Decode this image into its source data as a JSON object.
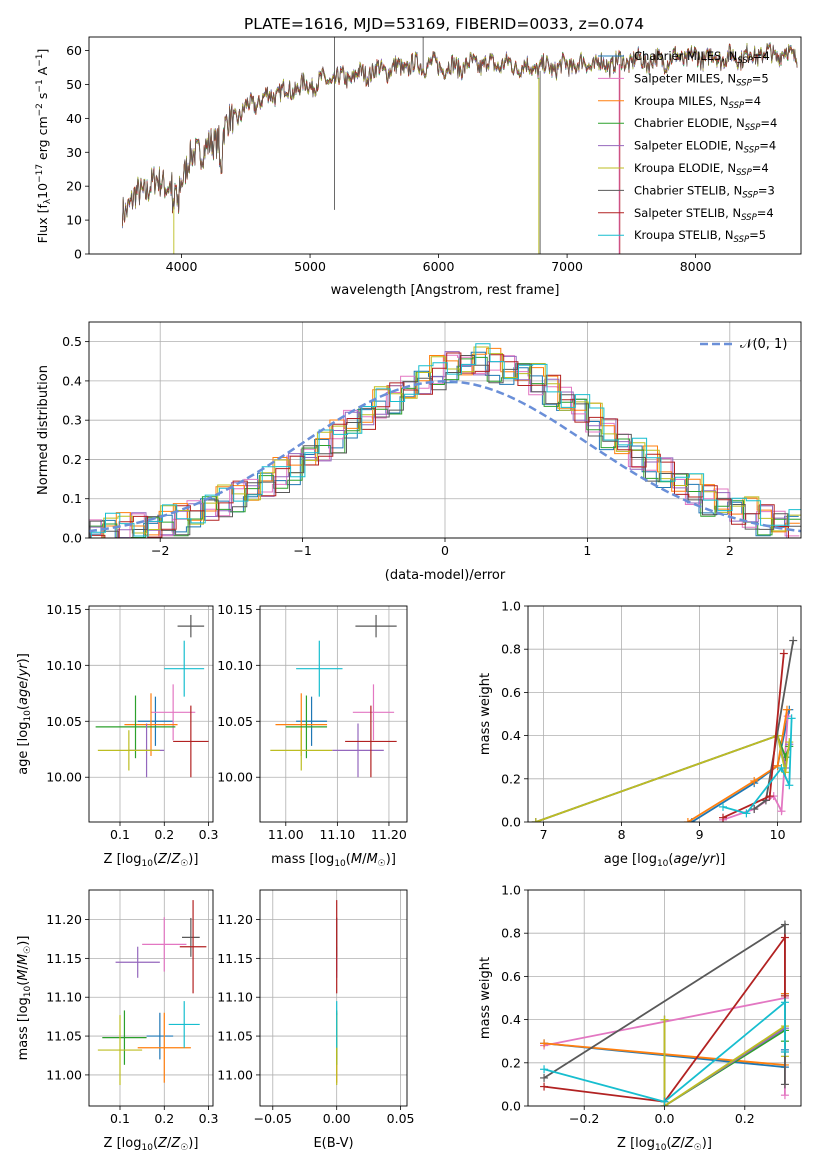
{
  "figure_title": "PLATE=1616, MJD=53169, FIBERID=0033, z=0.074",
  "colors": {
    "Chabrier MILES": "#1f77b4",
    "Salpeter MILES": "#e377c2",
    "Kroupa MILES": "#ff7f0e",
    "Chabrier ELODIE": "#2ca02c",
    "Salpeter ELODIE": "#9467bd",
    "Kroupa ELODIE": "#bcbd22",
    "Chabrier STELIB": "#595959",
    "Salpeter STELIB": "#b22222",
    "Kroupa STELIB": "#17becf",
    "gaussian": "#6a8fd8"
  },
  "chart_data": [
    {
      "id": "spectrum",
      "type": "line",
      "title": "PLATE=1616, MJD=53169, FIBERID=0033, z=0.074",
      "xlabel": "wavelength [Angstrom, rest frame]",
      "ylabel": "Flux [f_λ10^-17 erg cm^-2 s^-1 A^-1]",
      "xlim": [
        3280,
        8820
      ],
      "ylim": [
        0,
        64
      ],
      "xticks": [
        4000,
        5000,
        6000,
        7000,
        8000
      ],
      "yticks": [
        0,
        10,
        20,
        30,
        40,
        50,
        60
      ],
      "grid": false,
      "legend_position": "top-right",
      "series": [
        {
          "name": "Chabrier MILES, N_SSP=4"
        },
        {
          "name": "Salpeter MILES, N_SSP=5"
        },
        {
          "name": "Kroupa MILES, N_SSP=4"
        },
        {
          "name": "Chabrier ELODIE, N_SSP=4"
        },
        {
          "name": "Salpeter ELODIE, N_SSP=4"
        },
        {
          "name": "Kroupa ELODIE, N_SSP=4"
        },
        {
          "name": "Chabrier STELIB, N_SSP=3"
        },
        {
          "name": "Salpeter STELIB, N_SSP=4"
        },
        {
          "name": "Kroupa STELIB, N_SSP=5"
        }
      ],
      "continuum": {
        "x": [
          3550,
          3650,
          3750,
          3850,
          3950,
          4050,
          4150,
          4250,
          4350,
          4500,
          4700,
          4900,
          5100,
          5300,
          5500,
          5700,
          5900,
          6100,
          6300,
          6500,
          6700,
          6900,
          7100,
          7300,
          7500,
          7700,
          7900,
          8100,
          8300,
          8500,
          8700,
          8800
        ],
        "y": [
          13,
          17,
          20,
          22,
          18,
          27,
          31,
          32,
          38,
          43,
          47,
          49,
          51,
          52,
          54,
          55,
          56,
          55,
          56,
          56,
          55,
          55,
          56,
          56,
          57,
          57,
          58,
          58,
          58,
          59,
          59,
          59
        ]
      }
    },
    {
      "id": "residuals",
      "type": "bar",
      "xlabel": "(data-model)/error",
      "ylabel": "Normed distribution",
      "xlim": [
        -2.5,
        2.5
      ],
      "ylim": [
        0,
        0.55
      ],
      "xticks": [
        -2,
        -1,
        0,
        1,
        2
      ],
      "yticks": [
        0.0,
        0.1,
        0.2,
        0.3,
        0.4,
        0.5
      ],
      "grid": true,
      "legend_position": "top-right",
      "legend": "𝒩(0, 1)",
      "bin_width": 0.1,
      "bin_start": -2.5,
      "base": [
        0.02,
        0.02,
        0.02,
        0.03,
        0.03,
        0.04,
        0.05,
        0.06,
        0.08,
        0.09,
        0.11,
        0.12,
        0.14,
        0.16,
        0.18,
        0.21,
        0.23,
        0.26,
        0.29,
        0.31,
        0.34,
        0.36,
        0.38,
        0.4,
        0.42,
        0.44,
        0.44,
        0.45,
        0.44,
        0.43,
        0.42,
        0.4,
        0.38,
        0.35,
        0.33,
        0.3,
        0.27,
        0.24,
        0.21,
        0.19,
        0.17,
        0.14,
        0.12,
        0.1,
        0.09,
        0.07,
        0.06,
        0.05,
        0.04,
        0.03
      ]
    },
    {
      "id": "age-vs-Z",
      "type": "scatter",
      "xlabel": "Z [log10(Z/Z☉)]",
      "ylabel": "age  [log10(age/yr)]",
      "xlim": [
        0.03,
        0.31
      ],
      "ylim": [
        9.96,
        10.153
      ],
      "xticks": [
        0.1,
        0.2,
        0.3
      ],
      "yticks": [
        10.0,
        10.05,
        10.1,
        10.15
      ],
      "grid": true,
      "points": [
        {
          "series": "Chabrier MILES",
          "x": 0.18,
          "y": 10.05,
          "xerr": 0.04,
          "yerr": 0.022
        },
        {
          "series": "Salpeter MILES",
          "x": 0.22,
          "y": 10.058,
          "xerr": 0.05,
          "yerr": 0.025
        },
        {
          "series": "Kroupa MILES",
          "x": 0.17,
          "y": 10.047,
          "xerr": 0.06,
          "yerr": 0.028
        },
        {
          "series": "Chabrier ELODIE",
          "x": 0.135,
          "y": 10.045,
          "xerr": 0.09,
          "yerr": 0.028
        },
        {
          "series": "Salpeter ELODIE",
          "x": 0.16,
          "y": 10.024,
          "xerr": 0.04,
          "yerr": 0.024
        },
        {
          "series": "Kroupa ELODIE",
          "x": 0.12,
          "y": 10.024,
          "xerr": 0.07,
          "yerr": 0.018
        },
        {
          "series": "Chabrier STELIB",
          "x": 0.26,
          "y": 10.135,
          "xerr": 0.03,
          "yerr": 0.01
        },
        {
          "series": "Salpeter STELIB",
          "x": 0.26,
          "y": 10.032,
          "xerr": 0.04,
          "yerr": 0.032
        },
        {
          "series": "Kroupa STELIB",
          "x": 0.245,
          "y": 10.097,
          "xerr": 0.045,
          "yerr": 0.025
        }
      ]
    },
    {
      "id": "age-vs-mass",
      "type": "scatter",
      "xlabel": "mass [log10(M/M☉)]",
      "ylabel": "",
      "xlim": [
        10.95,
        11.235
      ],
      "ylim": [
        9.96,
        10.153
      ],
      "xticks": [
        11.0,
        11.1,
        11.2
      ],
      "yticks": [
        10.0,
        10.05,
        10.1,
        10.15
      ],
      "grid": true,
      "points": [
        {
          "series": "Chabrier MILES",
          "x": 11.05,
          "y": 10.05,
          "xerr": 0.03,
          "yerr": 0.022
        },
        {
          "series": "Salpeter MILES",
          "x": 11.17,
          "y": 10.058,
          "xerr": 0.04,
          "yerr": 0.025
        },
        {
          "series": "Kroupa MILES",
          "x": 11.03,
          "y": 10.047,
          "xerr": 0.05,
          "yerr": 0.028
        },
        {
          "series": "Chabrier ELODIE",
          "x": 11.04,
          "y": 10.045,
          "xerr": 0.04,
          "yerr": 0.028
        },
        {
          "series": "Salpeter ELODIE",
          "x": 11.14,
          "y": 10.024,
          "xerr": 0.05,
          "yerr": 0.024
        },
        {
          "series": "Kroupa ELODIE",
          "x": 11.03,
          "y": 10.024,
          "xerr": 0.06,
          "yerr": 0.018
        },
        {
          "series": "Chabrier STELIB",
          "x": 11.175,
          "y": 10.135,
          "xerr": 0.04,
          "yerr": 0.01
        },
        {
          "series": "Salpeter STELIB",
          "x": 11.165,
          "y": 10.032,
          "xerr": 0.05,
          "yerr": 0.032
        },
        {
          "series": "Kroupa STELIB",
          "x": 11.065,
          "y": 10.097,
          "xerr": 0.045,
          "yerr": 0.025
        }
      ]
    },
    {
      "id": "weight-vs-age",
      "type": "line",
      "xlabel": "age  [log10(age/yr)]",
      "ylabel": "mass weight",
      "xlim": [
        6.8,
        10.3
      ],
      "ylim": [
        0,
        1.0
      ],
      "xticks": [
        7,
        8,
        9,
        10
      ],
      "yticks": [
        0.0,
        0.2,
        0.4,
        0.6,
        0.8,
        1.0
      ],
      "grid": true,
      "series": [
        {
          "key": "Chabrier MILES",
          "x": [
            8.9,
            9.7,
            10.0,
            10.15
          ],
          "y": [
            0.0,
            0.18,
            0.26,
            0.52
          ]
        },
        {
          "key": "Salpeter MILES",
          "x": [
            9.3,
            9.7,
            9.95,
            10.05,
            10.13
          ],
          "y": [
            0.01,
            0.06,
            0.12,
            0.05,
            0.49
          ]
        },
        {
          "key": "Kroupa MILES",
          "x": [
            8.85,
            9.7,
            10.0,
            10.12
          ],
          "y": [
            0.0,
            0.19,
            0.26,
            0.52
          ]
        },
        {
          "key": "Chabrier ELODIE",
          "x": [
            6.9,
            10.0,
            10.1,
            10.15
          ],
          "y": [
            0.0,
            0.4,
            0.3,
            0.35
          ]
        },
        {
          "key": "Salpeter ELODIE",
          "x": [
            6.9,
            10.0,
            10.1,
            10.15
          ],
          "y": [
            0.0,
            0.4,
            0.25,
            0.36
          ]
        },
        {
          "key": "Kroupa ELODIE",
          "x": [
            6.9,
            10.0,
            10.1,
            10.15
          ],
          "y": [
            0.0,
            0.4,
            0.23,
            0.37
          ]
        },
        {
          "key": "Chabrier STELIB",
          "x": [
            9.7,
            9.85,
            10.2
          ],
          "y": [
            0.06,
            0.1,
            0.84
          ]
        },
        {
          "key": "Salpeter STELIB",
          "x": [
            9.3,
            9.9,
            10.08
          ],
          "y": [
            0.02,
            0.12,
            0.78
          ]
        },
        {
          "key": "Kroupa STELIB",
          "x": [
            9.3,
            9.6,
            10.05,
            10.15,
            10.18
          ],
          "y": [
            0.07,
            0.04,
            0.25,
            0.17,
            0.48
          ]
        }
      ]
    },
    {
      "id": "mass-vs-Z",
      "type": "scatter",
      "xlabel": "Z [log10(Z/Z☉)]",
      "ylabel": "mass [log10(M/M☉)]",
      "xlim": [
        0.03,
        0.31
      ],
      "ylim": [
        10.96,
        11.238
      ],
      "xticks": [
        0.1,
        0.2,
        0.3
      ],
      "yticks": [
        11.0,
        11.05,
        11.1,
        11.15,
        11.2
      ],
      "grid": true,
      "points": [
        {
          "series": "Chabrier MILES",
          "x": 0.19,
          "y": 11.05,
          "xerr": 0.03,
          "yerr": 0.03
        },
        {
          "series": "Salpeter MILES",
          "x": 0.2,
          "y": 11.168,
          "xerr": 0.05,
          "yerr": 0.035
        },
        {
          "series": "Kroupa MILES",
          "x": 0.2,
          "y": 11.035,
          "xerr": 0.06,
          "yerr": 0.045
        },
        {
          "series": "Chabrier ELODIE",
          "x": 0.11,
          "y": 11.048,
          "xerr": 0.05,
          "yerr": 0.035
        },
        {
          "series": "Salpeter ELODIE",
          "x": 0.14,
          "y": 11.145,
          "xerr": 0.05,
          "yerr": 0.02
        },
        {
          "series": "Kroupa ELODIE",
          "x": 0.1,
          "y": 11.032,
          "xerr": 0.05,
          "yerr": 0.045
        },
        {
          "series": "Chabrier STELIB",
          "x": 0.26,
          "y": 11.177,
          "xerr": 0.02,
          "yerr": 0.025
        },
        {
          "series": "Salpeter STELIB",
          "x": 0.265,
          "y": 11.165,
          "xerr": 0.03,
          "yerr": 0.06
        },
        {
          "series": "Kroupa STELIB",
          "x": 0.245,
          "y": 11.065,
          "xerr": 0.035,
          "yerr": 0.03
        }
      ]
    },
    {
      "id": "mass-vs-EBV",
      "type": "scatter",
      "xlabel": "E(B-V)",
      "ylabel": "",
      "xlim": [
        -0.06,
        0.055
      ],
      "ylim": [
        10.96,
        11.238
      ],
      "xticks": [
        -0.05,
        0.0,
        0.05
      ],
      "yticks": [
        11.0,
        11.05,
        11.1,
        11.15,
        11.2
      ],
      "grid": true,
      "points": [
        {
          "series": "Chabrier MILES",
          "x": 0.0,
          "y": 11.05,
          "xerr": 0,
          "yerr": 0.03
        },
        {
          "series": "Salpeter MILES",
          "x": 0.0,
          "y": 11.168,
          "xerr": 0,
          "yerr": 0.035
        },
        {
          "series": "Kroupa MILES",
          "x": 0.0,
          "y": 11.035,
          "xerr": 0,
          "yerr": 0.045
        },
        {
          "series": "Chabrier ELODIE",
          "x": 0.0,
          "y": 11.048,
          "xerr": 0,
          "yerr": 0.035
        },
        {
          "series": "Salpeter ELODIE",
          "x": 0.0,
          "y": 11.145,
          "xerr": 0,
          "yerr": 0.02
        },
        {
          "series": "Kroupa ELODIE",
          "x": 0.0,
          "y": 11.032,
          "xerr": 0,
          "yerr": 0.045
        },
        {
          "series": "Chabrier STELIB",
          "x": 0.0,
          "y": 11.177,
          "xerr": 0,
          "yerr": 0.025
        },
        {
          "series": "Salpeter STELIB",
          "x": 0.0,
          "y": 11.165,
          "xerr": 0,
          "yerr": 0.06
        },
        {
          "series": "Kroupa STELIB",
          "x": 0.0,
          "y": 11.065,
          "xerr": 0,
          "yerr": 0.03
        }
      ]
    },
    {
      "id": "weight-vs-Z",
      "type": "line",
      "xlabel": "Z [log10(Z/Z☉)]",
      "ylabel": "mass weight",
      "xlim": [
        -0.34,
        0.34
      ],
      "ylim": [
        0,
        1.0
      ],
      "xticks": [
        -0.2,
        0.0,
        0.2
      ],
      "yticks": [
        0.0,
        0.2,
        0.4,
        0.6,
        0.8,
        1.0
      ],
      "grid": true,
      "series": [
        {
          "key": "Chabrier MILES",
          "x": [
            -0.3,
            0.3,
            0.3,
            0.3
          ],
          "y": [
            0.29,
            0.18,
            0.26,
            0.52
          ]
        },
        {
          "key": "Salpeter MILES",
          "x": [
            -0.3,
            0.3,
            0.3
          ],
          "y": [
            0.28,
            0.5,
            0.05
          ]
        },
        {
          "key": "Kroupa MILES",
          "x": [
            -0.3,
            0.3,
            0.3
          ],
          "y": [
            0.29,
            0.19,
            0.52
          ]
        },
        {
          "key": "Chabrier ELODIE",
          "x": [
            0.0,
            0.0,
            0.3,
            0.3
          ],
          "y": [
            0.4,
            0.0,
            0.35,
            0.3
          ]
        },
        {
          "key": "Salpeter ELODIE",
          "x": [
            0.0,
            0.0,
            0.3,
            0.3
          ],
          "y": [
            0.4,
            0.0,
            0.36,
            0.25
          ]
        },
        {
          "key": "Kroupa ELODIE",
          "x": [
            0.0,
            0.0,
            0.3,
            0.3
          ],
          "y": [
            0.4,
            0.0,
            0.37,
            0.23
          ]
        },
        {
          "key": "Chabrier STELIB",
          "x": [
            -0.3,
            0.3,
            0.3
          ],
          "y": [
            0.13,
            0.84,
            0.1
          ]
        },
        {
          "key": "Salpeter STELIB",
          "x": [
            -0.3,
            0.0,
            0.3,
            0.3
          ],
          "y": [
            0.09,
            0.02,
            0.78,
            0.51
          ]
        },
        {
          "key": "Kroupa STELIB",
          "x": [
            -0.3,
            0.0,
            0.3,
            0.3
          ],
          "y": [
            0.17,
            0.02,
            0.48,
            0.25
          ]
        }
      ]
    }
  ]
}
